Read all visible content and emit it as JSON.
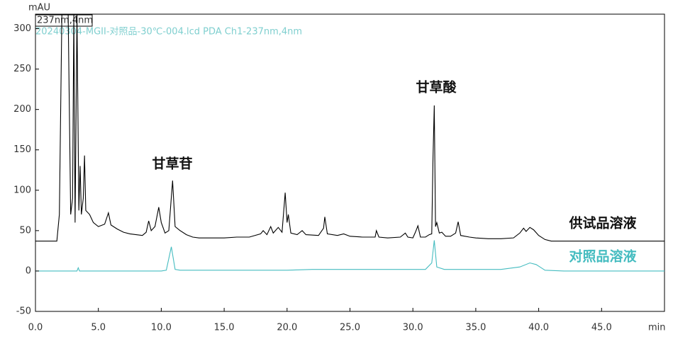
{
  "chart_data": {
    "type": "line",
    "title": "20240304-MGII-对照品-30℃-004.lcd PDA Ch1-237nm,4nm",
    "channel": "237nm,4nm",
    "x_label": "min",
    "y_label": "mAU",
    "annotations": [
      "甘草苷",
      "甘草酸"
    ],
    "xlim": [
      0,
      50
    ],
    "ylim": [
      -50,
      318
    ],
    "xticks": [
      {
        "value": 0,
        "label": "0.0"
      },
      {
        "value": 5,
        "label": "5.0"
      },
      {
        "value": 10,
        "label": "10.0"
      },
      {
        "value": 15,
        "label": "15.0"
      },
      {
        "value": 20,
        "label": "20.0"
      },
      {
        "value": 25,
        "label": "25.0"
      },
      {
        "value": 30,
        "label": "30.0"
      },
      {
        "value": 35,
        "label": "35.0"
      },
      {
        "value": 40,
        "label": "40.0"
      },
      {
        "value": 45,
        "label": "45.0"
      }
    ],
    "yticks": [
      -50,
      0,
      50,
      100,
      150,
      200,
      250,
      300
    ],
    "series": [
      {
        "name": "供试品溶液",
        "color": "#000000",
        "x": [
          0,
          1.7,
          1.9,
          2.1,
          2.6,
          2.8,
          2.95,
          3.05,
          3.15,
          3.3,
          3.45,
          3.55,
          3.65,
          3.8,
          3.9,
          4.0,
          4.3,
          4.6,
          5.0,
          5.5,
          5.8,
          6.0,
          6.5,
          7.0,
          7.5,
          8.0,
          8.5,
          8.8,
          9.0,
          9.2,
          9.5,
          9.8,
          10.0,
          10.3,
          10.6,
          10.9,
          11.1,
          11.5,
          12.0,
          12.5,
          13,
          14,
          15,
          16,
          17,
          17.9,
          18.1,
          18.4,
          18.7,
          18.9,
          19.3,
          19.6,
          19.85,
          20.0,
          20.1,
          20.3,
          20.8,
          21.2,
          21.5,
          22.5,
          22.9,
          23.0,
          23.2,
          24,
          24.5,
          25,
          26,
          27,
          27.1,
          27.3,
          28,
          29,
          29.4,
          29.6,
          30,
          30.2,
          30.4,
          30.6,
          31,
          31.3,
          31.5,
          31.6,
          31.7,
          31.8,
          31.9,
          32.1,
          32.3,
          32.6,
          33,
          33.4,
          33.6,
          33.8,
          34.5,
          35,
          36,
          37,
          38,
          38.5,
          38.8,
          39.0,
          39.3,
          39.6,
          40,
          40.5,
          41,
          45,
          50
        ],
        "values": [
          37,
          37,
          70,
          318,
          318,
          70,
          90,
          318,
          60,
          318,
          75,
          130,
          70,
          90,
          143,
          75,
          70,
          60,
          55,
          58,
          72,
          57,
          52,
          48,
          46,
          45,
          44,
          48,
          62,
          50,
          55,
          79,
          60,
          47,
          50,
          112,
          55,
          50,
          45,
          42,
          41,
          41,
          41,
          42,
          42,
          46,
          50,
          45,
          55,
          47,
          54,
          48,
          97,
          60,
          70,
          47,
          45,
          50,
          45,
          44,
          53,
          67,
          46,
          44,
          46,
          43,
          42,
          42,
          50,
          42,
          41,
          42,
          47,
          42,
          41,
          48,
          56,
          42,
          42,
          45,
          46,
          140,
          205,
          55,
          60,
          47,
          48,
          43,
          43,
          47,
          61,
          44,
          42,
          41,
          40,
          40,
          41,
          47,
          53,
          49,
          54,
          51,
          44,
          39,
          37,
          37,
          37
        ]
      },
      {
        "name": "对照品溶液",
        "color": "#45bcc0",
        "x": [
          0,
          3.3,
          3.4,
          3.5,
          10,
          10.4,
          10.8,
          11.1,
          11.5,
          12,
          20,
          22,
          31,
          31.5,
          31.7,
          31.9,
          32.5,
          35,
          37,
          38.5,
          39.3,
          39.8,
          40.5,
          42,
          50
        ],
        "values": [
          0,
          0,
          4,
          0,
          0,
          1,
          30,
          2,
          1,
          1,
          1,
          2,
          2,
          10,
          38,
          5,
          2,
          2,
          2,
          5,
          10,
          8,
          1,
          0,
          0
        ]
      }
    ]
  }
}
